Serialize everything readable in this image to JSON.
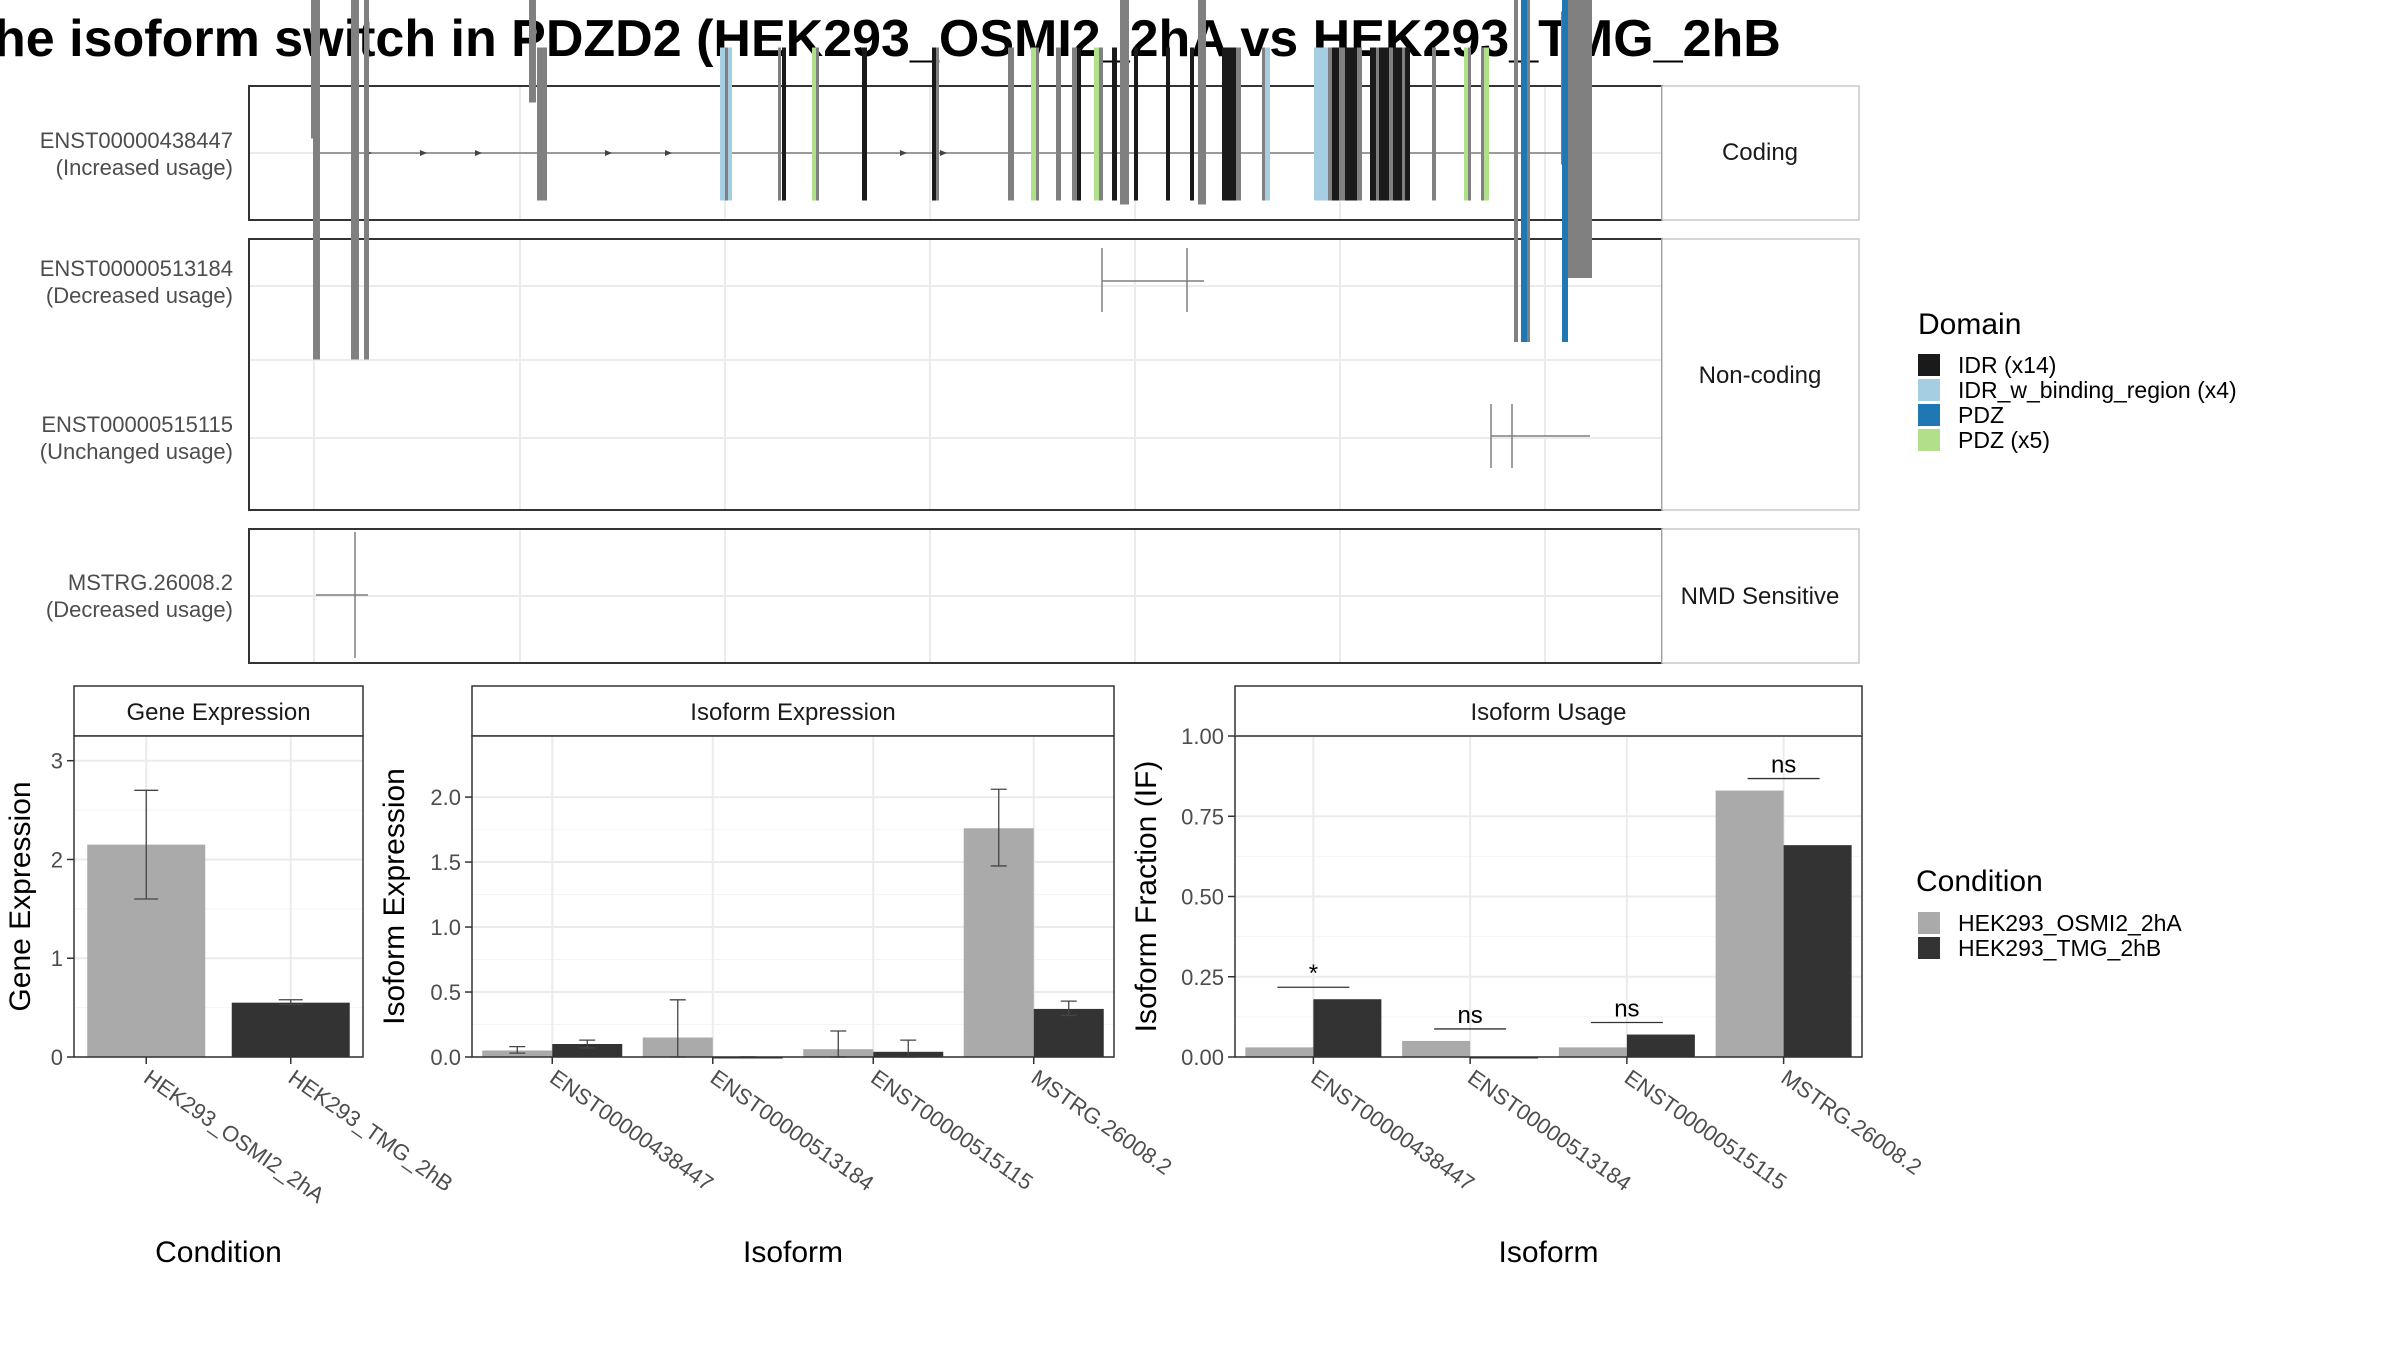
{
  "figure_title": "he isoform switch in PDZD2 (HEK293_OSMI2_2hA vs HEK293_TMG_2hB",
  "colors": {
    "IDR": "#1a1a1a",
    "IDR_w_binding_region": "#a6cee3",
    "PDZ": "#1f78b4",
    "PDZ_x5": "#b2df8a",
    "exon": "#808080",
    "cond_A": "#aaaaaa",
    "cond_B": "#333333",
    "grid": "#ebebeb",
    "strip_border": "#c8c8c8"
  },
  "structure": {
    "facets": [
      "Coding",
      "Non-coding",
      "NMD Sensitive"
    ],
    "transcripts": [
      {
        "id": "ENST00000438447",
        "usage": "(Increased usage)",
        "facet": "Coding"
      },
      {
        "id": "ENST00000513184",
        "usage": "(Decreased usage)",
        "facet": "Non-coding"
      },
      {
        "id": "ENST00000515115",
        "usage": "(Unchanged usage)",
        "facet": "Non-coding"
      },
      {
        "id": "MSTRG.26008.2",
        "usage": "(Decreased usage)",
        "facet": "NMD Sensitive"
      }
    ]
  },
  "legends": {
    "domain": {
      "title": "Domain",
      "items": [
        {
          "label": "IDR (x14)",
          "color_key": "IDR"
        },
        {
          "label": "IDR_w_binding_region (x4)",
          "color_key": "IDR_w_binding_region"
        },
        {
          "label": "PDZ",
          "color_key": "PDZ"
        },
        {
          "label": "PDZ (x5)",
          "color_key": "PDZ_x5"
        }
      ]
    },
    "condition": {
      "title": "Condition",
      "items": [
        {
          "label": "HEK293_OSMI2_2hA",
          "color_key": "cond_A"
        },
        {
          "label": "HEK293_TMG_2hB",
          "color_key": "cond_B"
        }
      ]
    }
  },
  "chart_data": [
    {
      "type": "bar",
      "title": "Gene Expression",
      "xlabel": "Condition",
      "ylabel": "Gene Expression",
      "ylim": [
        0,
        3.25
      ],
      "yticks": [
        "0",
        "1",
        "2",
        "3"
      ],
      "categories": [
        "HEK293_OSMI2_2hA",
        "HEK293_TMG_2hB"
      ],
      "values": [
        2.15,
        0.55
      ],
      "error_low": [
        1.6,
        0.53
      ],
      "error_high": [
        2.7,
        0.58
      ]
    },
    {
      "type": "bar",
      "title": "Isoform Expression",
      "xlabel": "Isoform",
      "ylabel": "Isoform Expression",
      "ylim": [
        0,
        2.47
      ],
      "yticks": [
        "0.0",
        "0.5",
        "1.0",
        "1.5",
        "2.0"
      ],
      "categories": [
        "ENST00000438447",
        "ENST00000513184",
        "ENST00000515115",
        "MSTRG.26008.2"
      ],
      "series": [
        {
          "name": "HEK293_OSMI2_2hA",
          "values": [
            0.05,
            0.15,
            0.06,
            1.76
          ],
          "error_low": [
            0.03,
            0.0,
            0.0,
            1.47
          ],
          "error_high": [
            0.08,
            0.44,
            0.2,
            2.06
          ]
        },
        {
          "name": "HEK293_TMG_2hB",
          "values": [
            0.1,
            0.0,
            0.04,
            0.37
          ],
          "error_low": [
            0.07,
            0.0,
            0.0,
            0.32
          ],
          "error_high": [
            0.13,
            0.0,
            0.13,
            0.43
          ]
        }
      ]
    },
    {
      "type": "bar",
      "title": "Isoform Usage",
      "xlabel": "Isoform",
      "ylabel": "Isoform Fraction (IF)",
      "ylim": [
        0,
        1.0
      ],
      "yticks": [
        "0.00",
        "0.25",
        "0.50",
        "0.75",
        "1.00"
      ],
      "categories": [
        "ENST00000438447",
        "ENST00000513184",
        "ENST00000515115",
        "MSTRG.26008.2"
      ],
      "series": [
        {
          "name": "HEK293_OSMI2_2hA",
          "values": [
            0.03,
            0.05,
            0.03,
            0.83
          ]
        },
        {
          "name": "HEK293_TMG_2hB",
          "values": [
            0.18,
            0.0,
            0.07,
            0.66
          ]
        }
      ],
      "significance": [
        "*",
        "ns",
        "ns",
        "ns"
      ]
    }
  ]
}
